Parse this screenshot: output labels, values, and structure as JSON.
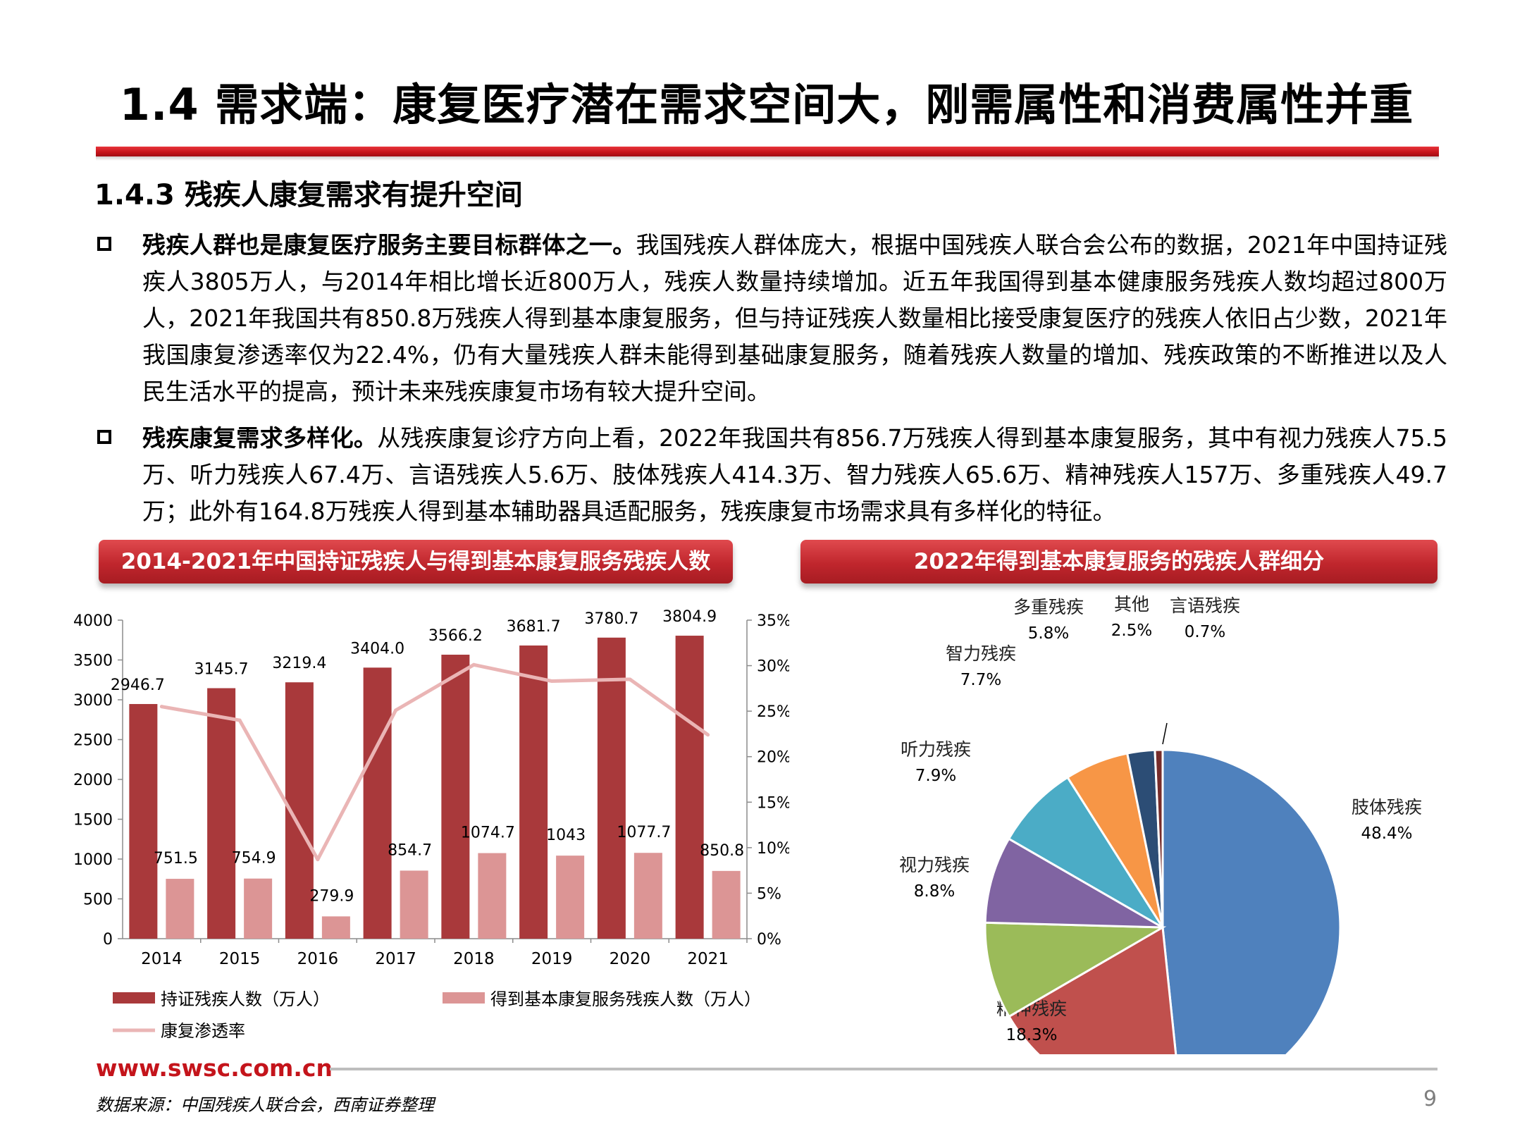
{
  "header": {
    "title": "1.4 需求端：康复医疗潜在需求空间大，刚需属性和消费属性并重",
    "subtitle": "1.4.3 残疾人康复需求有提升空间"
  },
  "bullets": [
    {
      "lead": "残疾人群也是康复医疗服务主要目标群体之一。",
      "text": "我国残疾人群体庞大，根据中国残疾人联合会公布的数据，2021年中国持证残疾人3805万人，与2014年相比增长近800万人，残疾人数量持续增加。近五年我国得到基本健康服务残疾人数均超过800万人，2021年我国共有850.8万残疾人得到基本康复服务，但与持证残疾人数量相比接受康复医疗的残疾人依旧占少数，2021年我国康复渗透率仅为22.4%，仍有大量残疾人群未能得到基础康复服务，随着残疾人数量的增加、残疾政策的不断推进以及人民生活水平的提高，预计未来残疾康复市场有较大提升空间。"
    },
    {
      "lead": "残疾康复需求多样化。",
      "text": "从残疾康复诊疗方向上看，2022年我国共有856.7万残疾人得到基本康复服务，其中有视力残疾人75.5万、听力残疾人67.4万、言语残疾人5.6万、肢体残疾人414.3万、智力残疾人65.6万、精神残疾人157万、多重残疾人49.7万；此外有164.8万残疾人得到基本辅助器具适配服务，残疾康复市场需求具有多样化的特征。"
    }
  ],
  "banners": {
    "left": "2014-2021年中国持证残疾人与得到基本康复服务残疾人数",
    "right": "2022年得到基本康复服务的残疾人群细分"
  },
  "chart_data": [
    {
      "type": "bar",
      "categories": [
        "2014",
        "2015",
        "2016",
        "2017",
        "2018",
        "2019",
        "2020",
        "2021"
      ],
      "series": [
        {
          "name": "持证残疾人数（万人）",
          "values": [
            2946.7,
            3145.7,
            3219.4,
            3404.0,
            3566.2,
            3681.7,
            3780.7,
            3804.9
          ],
          "labels": [
            "2946.7",
            "3145.7",
            "3219.4",
            "3404.0",
            "3566.2",
            "3681.7",
            "3780.7",
            "3804.9"
          ],
          "color": "#a9393b"
        },
        {
          "name": "得到基本康复服务残疾人数（万人）",
          "values": [
            751.5,
            754.9,
            279.9,
            854.7,
            1074.7,
            1043,
            1077.7,
            850.8
          ],
          "labels": [
            "751.5",
            "754.9",
            "279.9",
            "854.7",
            "1074.7",
            "1043",
            "1077.7",
            "850.8"
          ],
          "color": "#dc9595"
        },
        {
          "name": "康复渗透率",
          "axis": "right",
          "type": "line",
          "values": [
            25.5,
            24.0,
            8.7,
            25.1,
            30.1,
            28.3,
            28.5,
            22.4
          ],
          "color": "#eab5b5"
        }
      ],
      "ylim": [
        0,
        4000
      ],
      "yticks": [
        "0",
        "500",
        "1000",
        "1500",
        "2000",
        "2500",
        "3000",
        "3500",
        "4000"
      ],
      "y2lim": [
        0,
        35
      ],
      "y2ticks": [
        "0%",
        "5%",
        "10%",
        "15%",
        "20%",
        "25%",
        "30%",
        "35%"
      ],
      "legend": "bottom"
    },
    {
      "type": "pie",
      "slices": [
        {
          "label": "肢体残疾",
          "value": 48.4,
          "pct": "48.4%",
          "color": "#4f81bd"
        },
        {
          "label": "精神残疾",
          "value": 18.3,
          "pct": "18.3%",
          "color": "#c0504d"
        },
        {
          "label": "视力残疾",
          "value": 8.8,
          "pct": "8.8%",
          "color": "#9bbb59"
        },
        {
          "label": "听力残疾",
          "value": 7.9,
          "pct": "7.9%",
          "color": "#8064a2"
        },
        {
          "label": "智力残疾",
          "value": 7.7,
          "pct": "7.7%",
          "color": "#4bacc6"
        },
        {
          "label": "多重残疾",
          "value": 5.8,
          "pct": "5.8%",
          "color": "#f79646"
        },
        {
          "label": "其他",
          "value": 2.5,
          "pct": "2.5%",
          "color": "#2c4d75"
        },
        {
          "label": "言语残疾",
          "value": 0.7,
          "pct": "0.7%",
          "color": "#772c2a"
        }
      ]
    }
  ],
  "footer": {
    "url": "www.swsc.com.cn",
    "source": "数据来源：中国残疾人联合会，西南证券整理",
    "page": "9"
  }
}
